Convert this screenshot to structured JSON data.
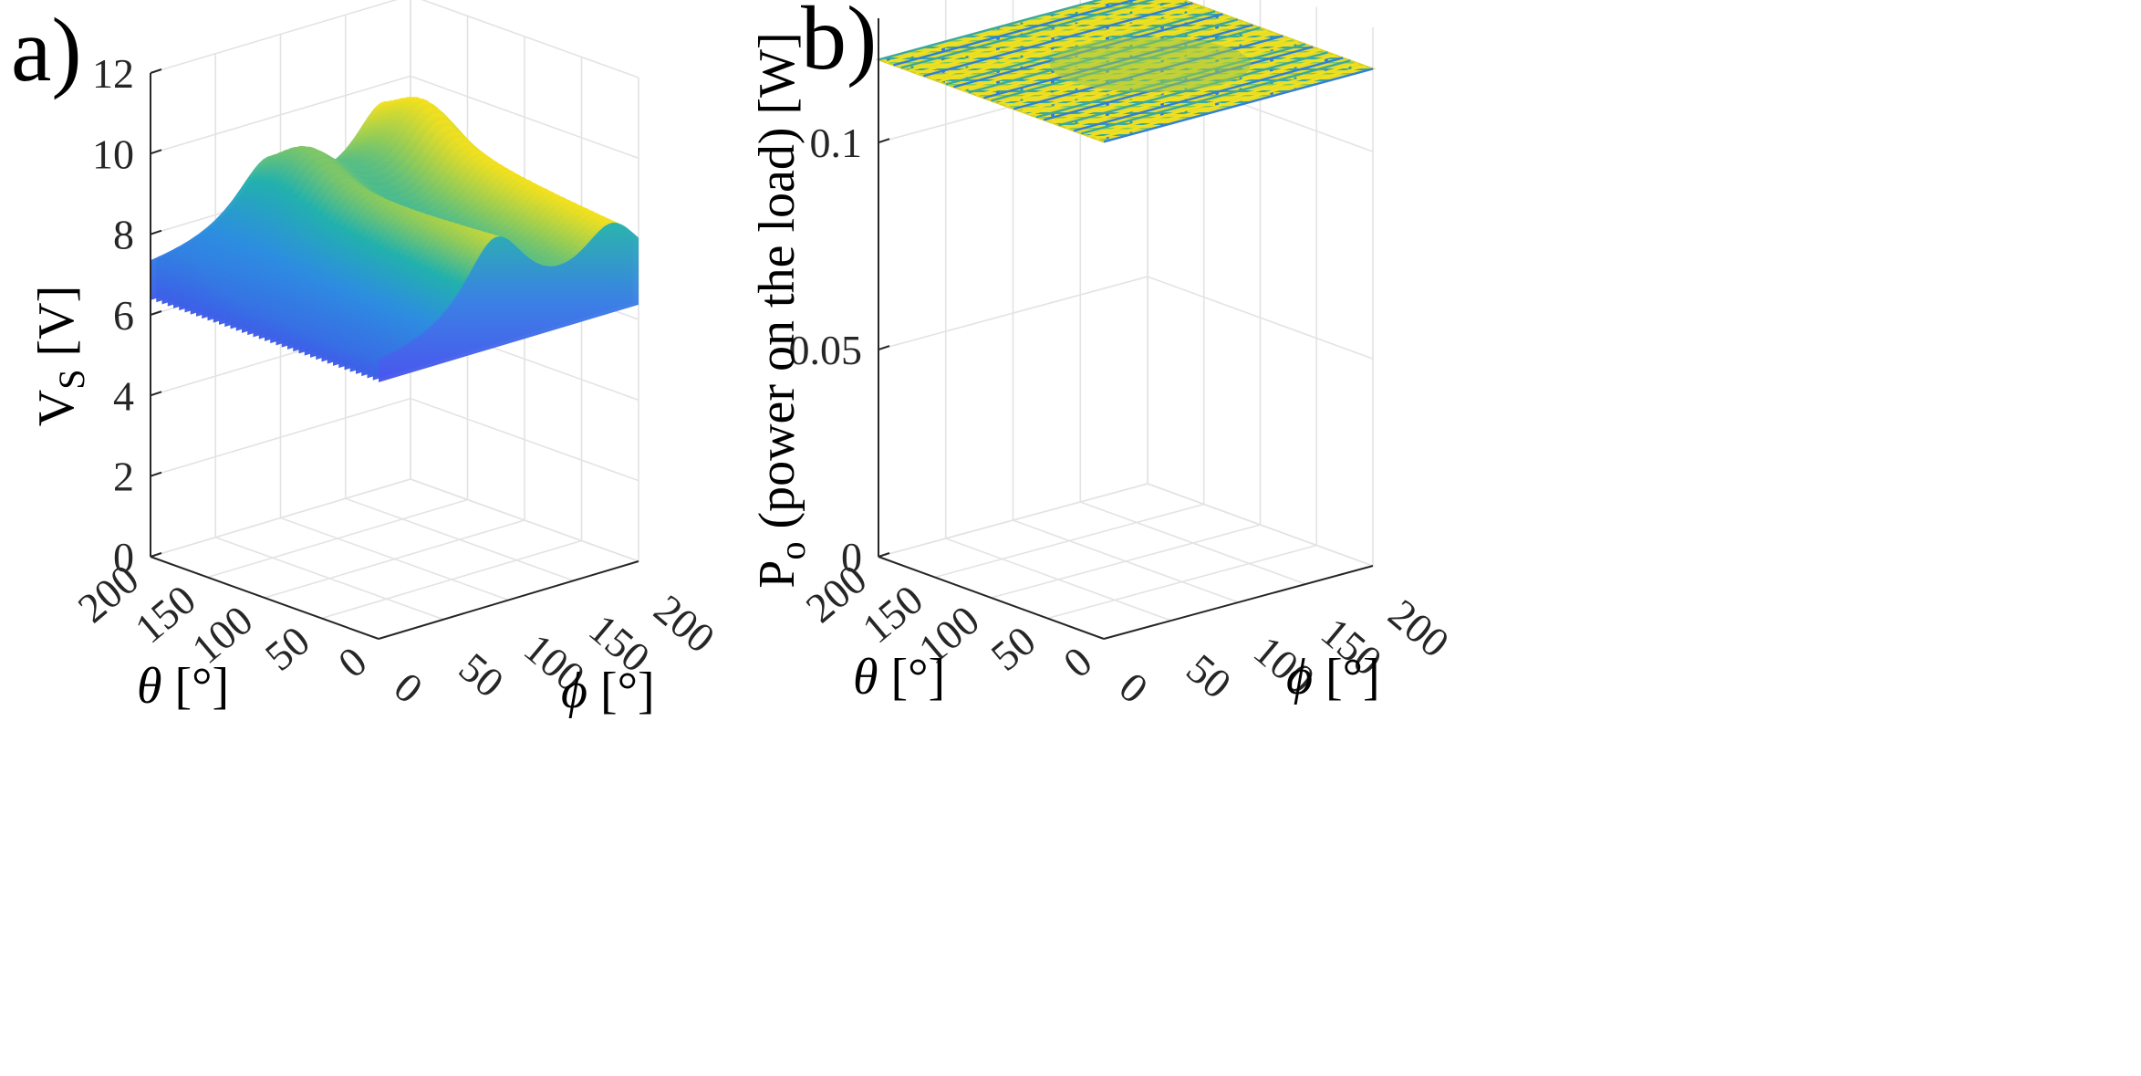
{
  "chart_data": [
    {
      "type": "surface3d",
      "panel_label": "a)",
      "zlabel_main": "V",
      "zlabel_sub": "S",
      "zlabel_unit": " [V]",
      "xlabel_sym": "θ",
      "xlabel_unit": " [°]",
      "ylabel_sym": "ϕ",
      "ylabel_unit": " [°]",
      "zlim": [
        0,
        12
      ],
      "z_ticks": [
        "0",
        "2",
        "4",
        "6",
        "8",
        "10",
        "12"
      ],
      "theta_ticks": [
        "0",
        "50",
        "100",
        "150",
        "200"
      ],
      "phi_ticks": [
        "0",
        "50",
        "100",
        "150",
        "200"
      ],
      "surface_description": "peaks near theta≈0/180 and phi≈0/180, base ≈6–7 V, peaks ≈11–12 V"
    },
    {
      "type": "surface3d",
      "panel_label": "b)",
      "zlabel_main": "P",
      "zlabel_sub": "o",
      "zlabel_unit": " (power on the load) [W]",
      "xlabel_sym": "θ",
      "xlabel_unit": " [°]",
      "ylabel_sym": "ϕ",
      "ylabel_unit": " [°]",
      "zlim": [
        0,
        0.13
      ],
      "z_ticks": [
        "0",
        "0.05",
        "0.1"
      ],
      "theta_ticks": [
        "0",
        "50",
        "100",
        "150",
        "200"
      ],
      "phi_ticks": [
        "0",
        "50",
        "100",
        "150",
        "200"
      ],
      "surface_level": 0.12
    }
  ],
  "colors": {
    "low": "#3e5ce8",
    "mid": "#22b1ad",
    "high": "#f5e11c",
    "grid": "#e3e3e3",
    "axis": "#262626"
  }
}
